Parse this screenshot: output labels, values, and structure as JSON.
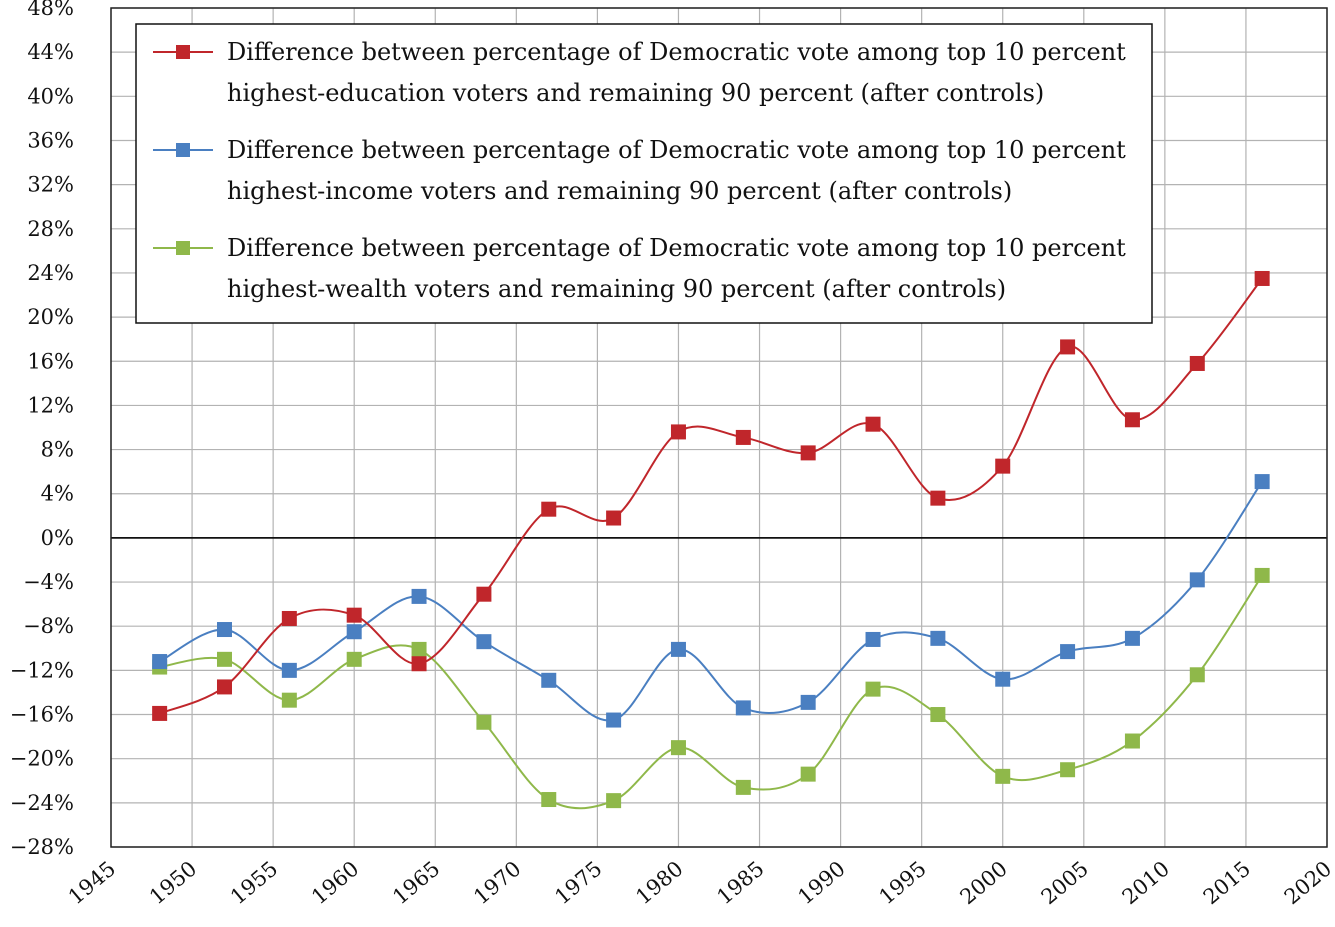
{
  "chart_data": {
    "type": "line",
    "title": "",
    "xlabel": "",
    "ylabel": "",
    "xlim": [
      1945,
      2020
    ],
    "ylim": [
      -28,
      48
    ],
    "x_ticks": [
      1945,
      1950,
      1955,
      1960,
      1965,
      1970,
      1975,
      1980,
      1985,
      1990,
      1995,
      2000,
      2005,
      2010,
      2015,
      2020
    ],
    "y_ticks": [
      {
        "value": 48,
        "label": "48%"
      },
      {
        "value": 44,
        "label": "44%"
      },
      {
        "value": 40,
        "label": "40%"
      },
      {
        "value": 36,
        "label": "36%"
      },
      {
        "value": 32,
        "label": "32%"
      },
      {
        "value": 28,
        "label": "28%"
      },
      {
        "value": 24,
        "label": "24%"
      },
      {
        "value": 20,
        "label": "20%"
      },
      {
        "value": 16,
        "label": "16%"
      },
      {
        "value": 12,
        "label": "12%"
      },
      {
        "value": 8,
        "label": "8%"
      },
      {
        "value": 4,
        "label": "4%"
      },
      {
        "value": 0,
        "label": "0%"
      },
      {
        "value": -4,
        "label": "−4%"
      },
      {
        "value": -8,
        "label": "−8%"
      },
      {
        "value": -12,
        "label": "−12%"
      },
      {
        "value": -16,
        "label": "−16%"
      },
      {
        "value": -20,
        "label": "−20%"
      },
      {
        "value": -24,
        "label": "−24%"
      },
      {
        "value": -28,
        "label": "−28%"
      }
    ],
    "grid": true,
    "legend_position": "top-left",
    "x": [
      1948,
      1952,
      1956,
      1960,
      1964,
      1968,
      1972,
      1976,
      1980,
      1984,
      1988,
      1992,
      1996,
      2000,
      2004,
      2008,
      2012,
      2016
    ],
    "series": [
      {
        "name": "Difference between percentage of Democratic vote among top 10 percent highest-education voters and remaining 90 percent (after controls)",
        "legend_lines": [
          "Difference between percentage of Democratic vote among top 10 percent",
          "highest-education voters and remaining 90 percent (after controls)"
        ],
        "color": "#c0262b",
        "values": [
          -15.9,
          -13.5,
          -7.3,
          -7.0,
          -11.4,
          -5.1,
          2.6,
          1.8,
          9.6,
          9.1,
          7.7,
          10.3,
          3.6,
          6.5,
          17.3,
          10.7,
          15.8,
          23.5
        ]
      },
      {
        "name": "Difference between percentage of Democratic vote among top 10 percent highest-income voters and remaining 90 percent (after controls)",
        "legend_lines": [
          "Difference between percentage of Democratic vote among top 10 percent",
          "highest-income voters and remaining 90 percent (after controls)"
        ],
        "color": "#4a7fc1",
        "values": [
          -11.2,
          -8.3,
          -12.0,
          -8.5,
          -5.3,
          -9.4,
          -12.9,
          -16.5,
          -10.1,
          -15.4,
          -14.9,
          -9.2,
          -9.1,
          -12.8,
          -10.3,
          -9.1,
          -3.8,
          5.1
        ]
      },
      {
        "name": "Difference between percentage of Democratic vote among top 10 percent highest-wealth voters and remaining 90 percent (after controls)",
        "legend_lines": [
          "Difference between percentage of Democratic vote among top 10 percent",
          "highest-wealth voters and remaining 90 percent (after controls)"
        ],
        "color": "#8fb84a",
        "values": [
          -11.7,
          -11.0,
          -14.7,
          -11.0,
          -10.1,
          -16.7,
          -23.7,
          -23.8,
          -19.0,
          -22.6,
          -21.4,
          -13.7,
          -16.0,
          -21.6,
          -21.0,
          -18.4,
          -12.4,
          -3.4
        ]
      }
    ]
  }
}
